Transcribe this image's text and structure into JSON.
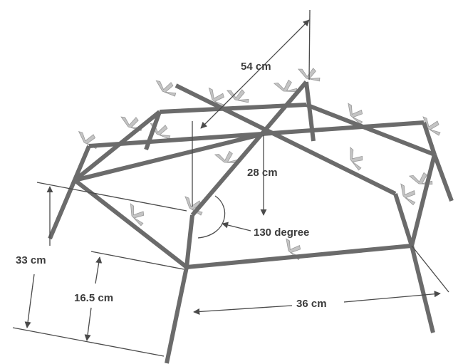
{
  "labels": {
    "diagonal_length": "54 cm",
    "center_height": "28 cm",
    "angle": "130 degree",
    "total_height": "33 cm",
    "leg_height": "16.5 cm",
    "side_length": "36 cm"
  }
}
